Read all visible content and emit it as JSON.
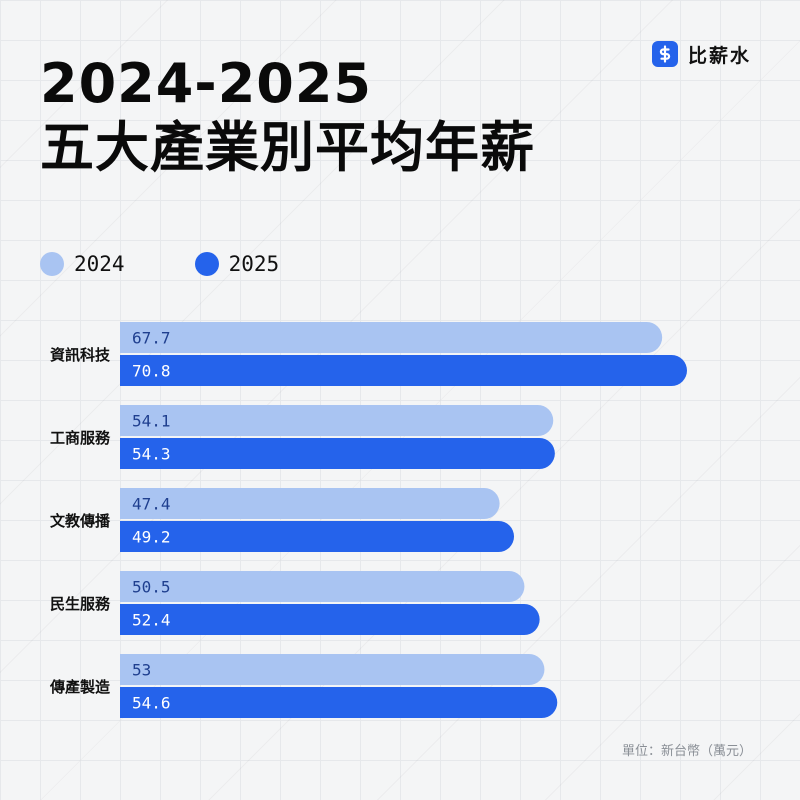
{
  "title": {
    "line1": "2024-2025",
    "line2": "五大產業別平均年薪"
  },
  "brand": {
    "name": "比薪水",
    "icon": "dollar-sign-icon",
    "color": "#2563eb"
  },
  "unit_note": "單位：新台幣（萬元）",
  "chart_data": {
    "type": "bar",
    "orientation": "horizontal",
    "categories": [
      "資訊科技",
      "工商服務",
      "文教傳播",
      "民生服務",
      "傳產製造"
    ],
    "series": [
      {
        "name": "2024",
        "color": "#a9c4f2",
        "values": [
          67.7,
          54.1,
          47.4,
          50.5,
          53
        ]
      },
      {
        "name": "2025",
        "color": "#2563eb",
        "values": [
          70.8,
          54.3,
          49.2,
          52.4,
          54.6
        ]
      }
    ],
    "data_labels": [
      [
        "67.7",
        "54.1",
        "47.4",
        "50.5",
        "53"
      ],
      [
        "70.8",
        "54.3",
        "49.2",
        "52.4",
        "54.6"
      ]
    ],
    "xlim": [
      0,
      70.8
    ],
    "legend_position": "top-left",
    "grid": true
  }
}
